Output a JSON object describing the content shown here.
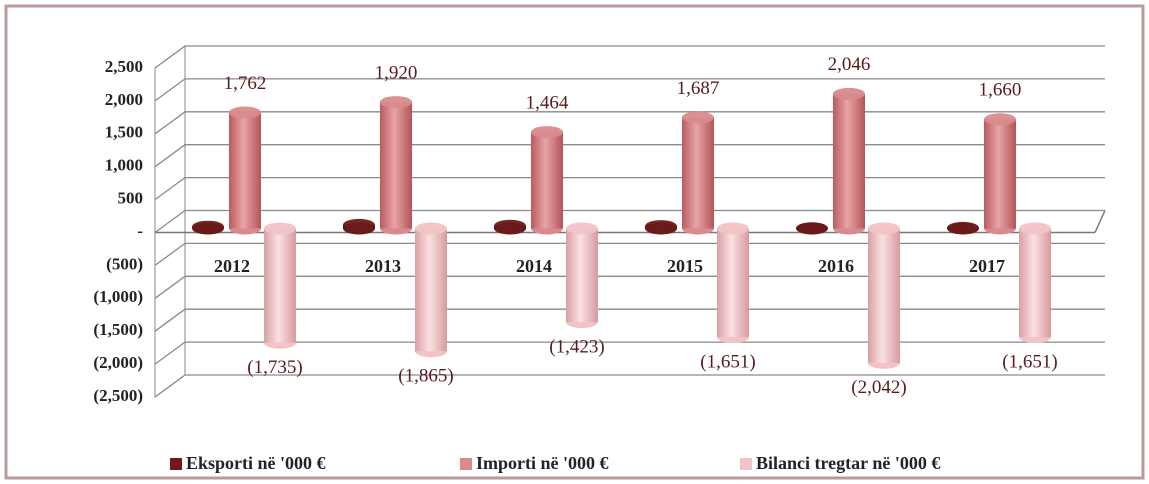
{
  "chart_data": {
    "type": "bar3d",
    "categories": [
      "2012",
      "2013",
      "2014",
      "2015",
      "2016",
      "2017"
    ],
    "series": [
      {
        "name": "Eksporti në '000 €",
        "color": "#6b1a1a",
        "values": [
          27,
          55,
          41,
          36,
          4,
          9
        ]
      },
      {
        "name": "Importi në '000 €",
        "color": "#d98a8c",
        "values": [
          1762,
          1920,
          1464,
          1687,
          2046,
          1660
        ],
        "value_labels": [
          "1,762",
          "1,920",
          "1,464",
          "1,687",
          "2,046",
          "1,660"
        ]
      },
      {
        "name": "Bilanci tregtar në '000 €",
        "color": "#f2c3c6",
        "values": [
          -1735,
          -1865,
          -1423,
          -1651,
          -2042,
          -1651
        ],
        "value_labels": [
          "(1,735)",
          "(1,865)",
          "(1,423)",
          "(1,651)",
          "(2,042)",
          "(1,651)"
        ]
      }
    ],
    "ylim": [
      -2500,
      2500
    ],
    "yticks": [
      {
        "value": -2500,
        "label": "(2,500)"
      },
      {
        "value": -2000,
        "label": "(2,000)"
      },
      {
        "value": -1500,
        "label": "(1,500)"
      },
      {
        "value": -1000,
        "label": "(1,000)"
      },
      {
        "value": -500,
        "label": "(500)"
      },
      {
        "value": 0,
        "label": "-"
      },
      {
        "value": 500,
        "label": "500"
      },
      {
        "value": 1000,
        "label": "1,000"
      },
      {
        "value": 1500,
        "label": "1,500"
      },
      {
        "value": 2000,
        "label": "2,000"
      },
      {
        "value": 2500,
        "label": "2,500"
      }
    ],
    "grid": true,
    "legend": "bottom"
  }
}
